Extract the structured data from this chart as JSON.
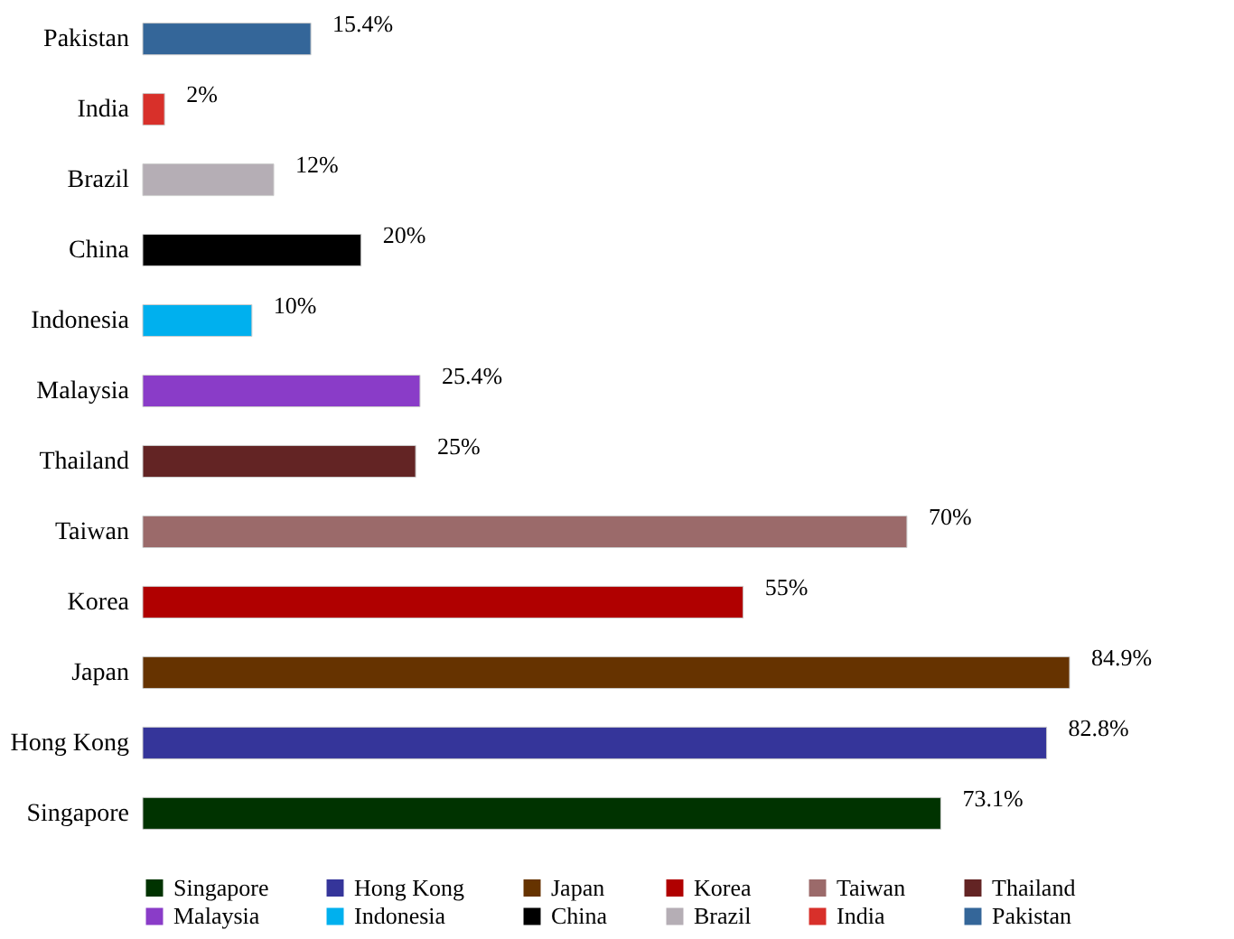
{
  "chart_data": {
    "type": "bar",
    "orientation": "horizontal",
    "stacked": true,
    "legend": "bottom",
    "categories": [
      "Pakistan",
      "India",
      "Brazil",
      "China",
      "Indonesia",
      "Malaysia",
      "Thailand",
      "Taiwan",
      "Korea",
      "Japan",
      "Hong Kong",
      "Singapore"
    ],
    "series": [
      {
        "name": "Singapore",
        "color": "#003300",
        "values": [
          null,
          null,
          null,
          null,
          null,
          null,
          null,
          null,
          null,
          null,
          null,
          73.1
        ],
        "value_labels": [
          null,
          null,
          null,
          null,
          null,
          null,
          null,
          null,
          null,
          null,
          null,
          "73.1%"
        ]
      },
      {
        "name": "Hong Kong",
        "color": "#35359a",
        "values": [
          null,
          null,
          null,
          null,
          null,
          null,
          null,
          null,
          null,
          null,
          82.8,
          null
        ],
        "value_labels": [
          null,
          null,
          null,
          null,
          null,
          null,
          null,
          null,
          null,
          null,
          "82.8%",
          null
        ]
      },
      {
        "name": "Japan",
        "color": "#663300",
        "values": [
          null,
          null,
          null,
          null,
          null,
          null,
          null,
          null,
          null,
          84.9,
          null,
          null
        ],
        "value_labels": [
          null,
          null,
          null,
          null,
          null,
          null,
          null,
          null,
          null,
          "84.9%",
          null,
          null
        ]
      },
      {
        "name": "Korea",
        "color": "#b00000",
        "values": [
          null,
          null,
          null,
          null,
          null,
          null,
          null,
          null,
          55,
          null,
          null,
          null
        ],
        "value_labels": [
          null,
          null,
          null,
          null,
          null,
          null,
          null,
          null,
          "55%",
          null,
          null,
          null
        ]
      },
      {
        "name": "Taiwan",
        "color": "#9b6a6a",
        "values": [
          null,
          null,
          null,
          null,
          null,
          null,
          null,
          70,
          null,
          null,
          null,
          null
        ],
        "value_labels": [
          null,
          null,
          null,
          null,
          null,
          null,
          null,
          "70%",
          null,
          null,
          null,
          null
        ]
      },
      {
        "name": "Thailand",
        "color": "#632424",
        "values": [
          null,
          null,
          null,
          null,
          null,
          null,
          25,
          null,
          null,
          null,
          null,
          null
        ],
        "value_labels": [
          null,
          null,
          null,
          null,
          null,
          null,
          "25%",
          null,
          null,
          null,
          null,
          null
        ]
      },
      {
        "name": "Malaysia",
        "color": "#8a3cc8",
        "values": [
          null,
          null,
          null,
          null,
          null,
          25.4,
          null,
          null,
          null,
          null,
          null,
          null
        ],
        "value_labels": [
          null,
          null,
          null,
          null,
          null,
          "25.4%",
          null,
          null,
          null,
          null,
          null,
          null
        ]
      },
      {
        "name": "Indonesia",
        "color": "#00b0ee",
        "values": [
          null,
          null,
          null,
          null,
          10,
          null,
          null,
          null,
          null,
          null,
          null,
          null
        ],
        "value_labels": [
          null,
          null,
          null,
          null,
          "10%",
          null,
          null,
          null,
          null,
          null,
          null,
          null
        ]
      },
      {
        "name": "China",
        "color": "#000000",
        "values": [
          null,
          null,
          null,
          20,
          null,
          null,
          null,
          null,
          null,
          null,
          null,
          null
        ],
        "value_labels": [
          null,
          null,
          null,
          "20%",
          null,
          null,
          null,
          null,
          null,
          null,
          null,
          null
        ]
      },
      {
        "name": "Brazil",
        "color": "#b5aeb5",
        "values": [
          null,
          null,
          12,
          null,
          null,
          null,
          null,
          null,
          null,
          null,
          null,
          null
        ],
        "value_labels": [
          null,
          null,
          "12%",
          null,
          null,
          null,
          null,
          null,
          null,
          null,
          null,
          null
        ]
      },
      {
        "name": "India",
        "color": "#d8302a",
        "values": [
          null,
          2,
          null,
          null,
          null,
          null,
          null,
          null,
          null,
          null,
          null,
          null
        ],
        "value_labels": [
          null,
          "2%",
          null,
          null,
          null,
          null,
          null,
          null,
          null,
          null,
          null,
          null
        ]
      },
      {
        "name": "Pakistan",
        "color": "#346699",
        "values": [
          15.4,
          null,
          null,
          null,
          null,
          null,
          null,
          null,
          null,
          null,
          null,
          null
        ],
        "value_labels": [
          "15.4%",
          null,
          null,
          null,
          null,
          null,
          null,
          null,
          null,
          null,
          null,
          null
        ]
      }
    ]
  }
}
